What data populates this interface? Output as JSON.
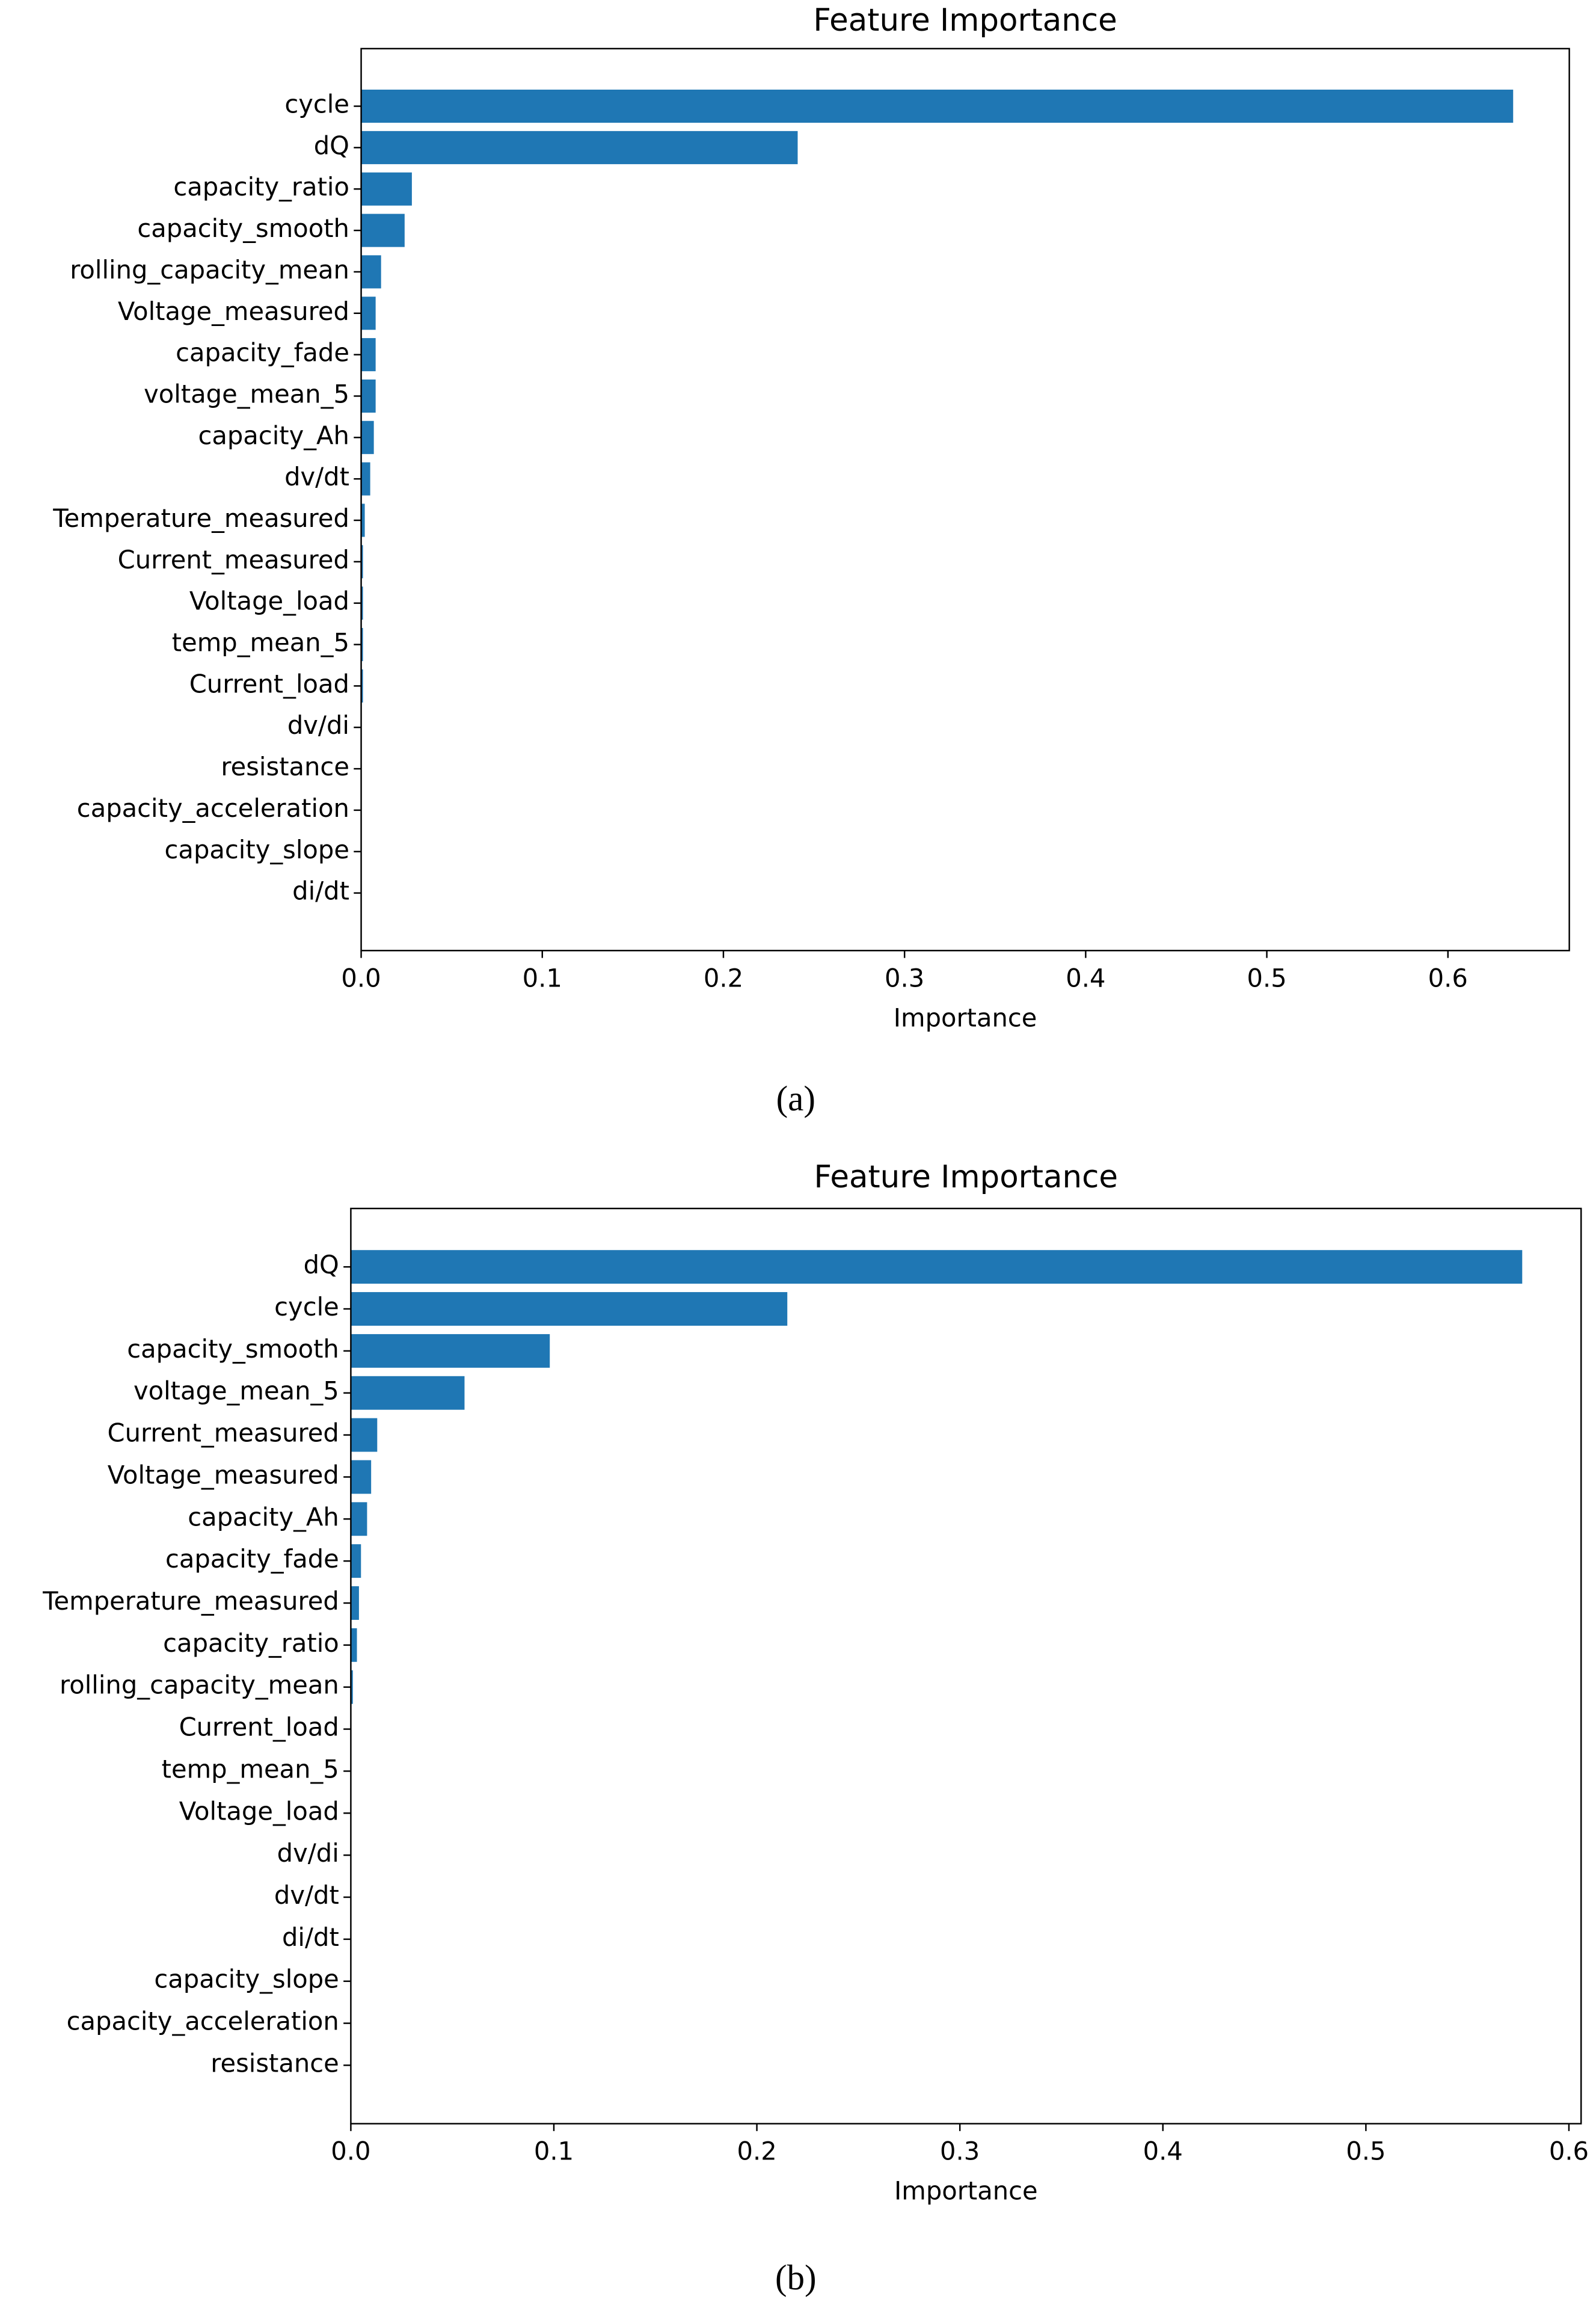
{
  "chart_data": [
    {
      "type": "barh",
      "title": "Feature Importance",
      "x_label": "Importance",
      "caption": "(a)",
      "categories": [
        "cycle",
        "dQ",
        "capacity_ratio",
        "capacity_smooth",
        "rolling_capacity_mean",
        "Voltage_measured",
        "capacity_fade",
        "voltage_mean_5",
        "capacity_Ah",
        "dv/dt",
        "Temperature_measured",
        "Current_measured",
        "Voltage_load",
        "temp_mean_5",
        "Current_load",
        "dv/di",
        "resistance",
        "capacity_acceleration",
        "capacity_slope",
        "di/dt"
      ],
      "values": [
        0.636,
        0.241,
        0.028,
        0.024,
        0.011,
        0.008,
        0.008,
        0.008,
        0.007,
        0.005,
        0.002,
        0.001,
        0.001,
        0.001,
        0.001,
        0,
        0,
        0,
        0,
        0
      ],
      "color": "#1f77b4",
      "xlim": [
        0,
        0.667
      ],
      "xticks": [
        {
          "value": 0,
          "label": "0.0"
        },
        0.1,
        0.2,
        0.3,
        0.4,
        0.5,
        0.6
      ]
    },
    {
      "type": "barh",
      "title": "Feature Importance",
      "x_label": "Importance",
      "caption": "(b)",
      "categories": [
        "dQ",
        "cycle",
        "capacity_smooth",
        "voltage_mean_5",
        "Current_measured",
        "Voltage_measured",
        "capacity_Ah",
        "capacity_fade",
        "Temperature_measured",
        "capacity_ratio",
        "rolling_capacity_mean",
        "Current_load",
        "temp_mean_5",
        "Voltage_load",
        "dv/di",
        "dv/dt",
        "di/dt",
        "capacity_slope",
        "capacity_acceleration",
        "resistance"
      ],
      "values": [
        0.577,
        0.215,
        0.098,
        0.056,
        0.013,
        0.01,
        0.008,
        0.005,
        0.004,
        0.003,
        0.001,
        0,
        0,
        0,
        0,
        0,
        0,
        0,
        0,
        0
      ],
      "color": "#1f77b4",
      "xlim": [
        0,
        0.606
      ],
      "xticks": [
        {
          "value": 0,
          "label": "0.0"
        },
        0.1,
        0.2,
        0.3,
        0.4,
        0.5,
        0.6
      ]
    }
  ]
}
